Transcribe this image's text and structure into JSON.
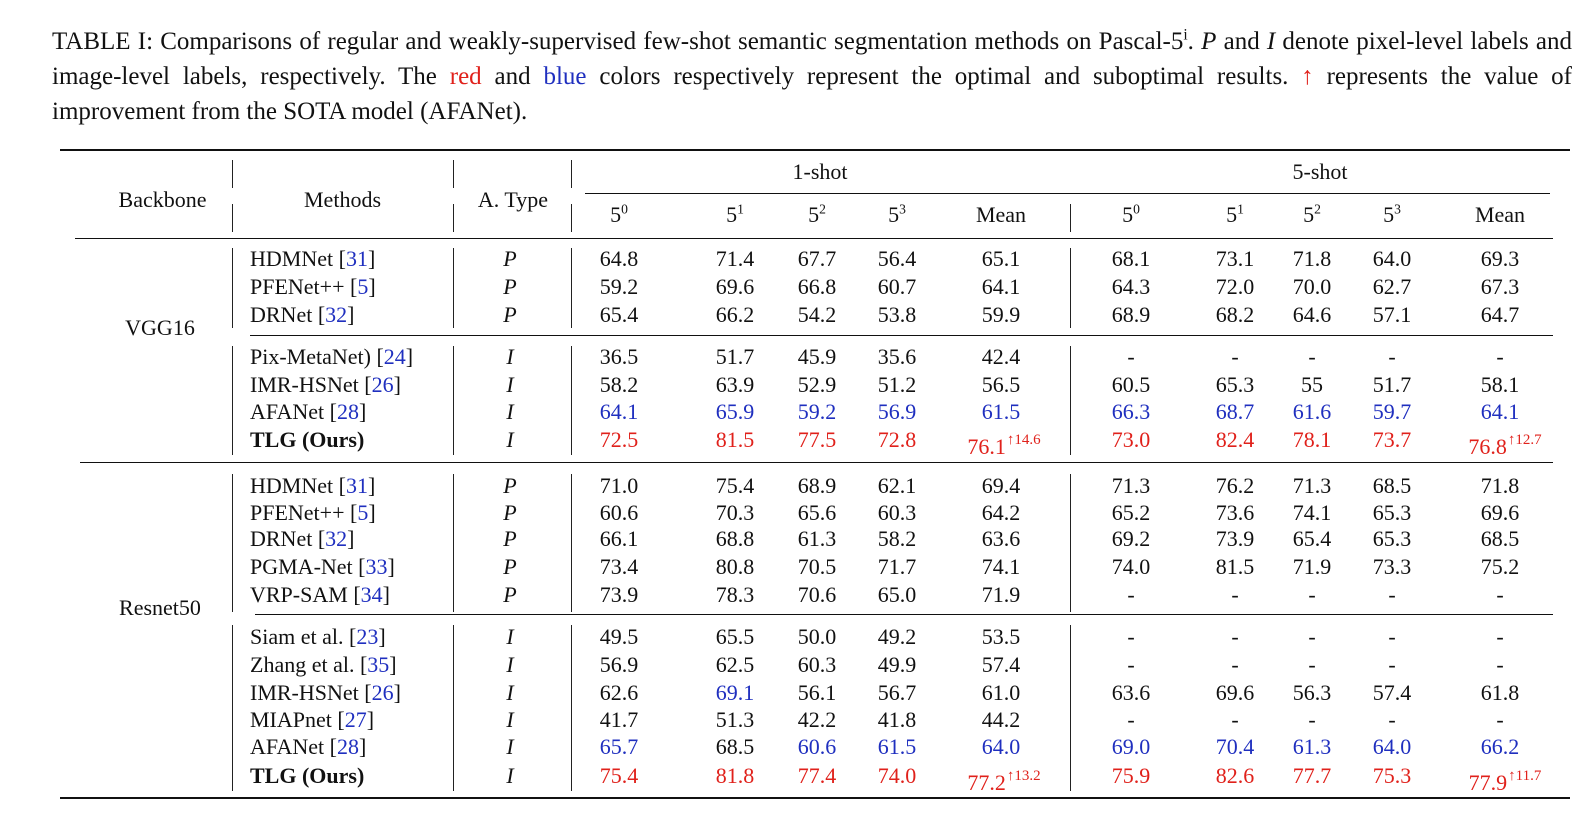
{
  "caption": {
    "part1": "TABLE I: Comparisons of regular and weakly-supervised few-shot semantic segmentation methods on Pascal-5",
    "sup": "i",
    "part2": ". ",
    "p_label": "P",
    "part3": " and ",
    "i_label": "I",
    "part4": " denote pixel-level labels and image-level labels, respectively. The ",
    "red_word": "red",
    "part5": " and ",
    "blue_word": "blue",
    "part6": " colors respectively represent the optimal and suboptimal results. ",
    "arrow": "↑",
    "part7": " represents the value of improvement from the SOTA model (AFANet)."
  },
  "headers": {
    "backbone": "Backbone",
    "methods": "Methods",
    "atype": "A. Type",
    "one_shot": "1-shot",
    "five_shot": "5-shot",
    "folds": [
      "5",
      "5",
      "5",
      "5"
    ],
    "fold_sups": [
      "0",
      "1",
      "2",
      "3"
    ],
    "mean": "Mean"
  },
  "colors": {
    "red": "#e0211b",
    "blue": "#1f2fbf"
  },
  "groups": [
    {
      "backbone": "VGG16",
      "blocks": [
        [
          {
            "method": "HDMNet",
            "ref": "31",
            "type": "P",
            "v1": [
              "64.8",
              "71.4",
              "67.7",
              "56.4",
              "65.1"
            ],
            "v5": [
              "68.1",
              "73.1",
              "71.8",
              "64.0",
              "69.3"
            ]
          },
          {
            "method": "PFENet++",
            "ref": "5",
            "type": "P",
            "v1": [
              "59.2",
              "69.6",
              "66.8",
              "60.7",
              "64.1"
            ],
            "v5": [
              "64.3",
              "72.0",
              "70.0",
              "62.7",
              "67.3"
            ]
          },
          {
            "method": "DRNet",
            "ref": "32",
            "type": "P",
            "v1": [
              "65.4",
              "66.2",
              "54.2",
              "53.8",
              "59.9"
            ],
            "v5": [
              "68.9",
              "68.2",
              "64.6",
              "57.1",
              "64.7"
            ]
          }
        ],
        [
          {
            "method": "Pix-MetaNet)",
            "ref": "24",
            "type": "I",
            "v1": [
              "36.5",
              "51.7",
              "45.9",
              "35.6",
              "42.4"
            ],
            "v5": [
              "-",
              "-",
              "-",
              "-",
              "-"
            ]
          },
          {
            "method": "IMR-HSNet",
            "ref": "26",
            "type": "I",
            "v1": [
              "58.2",
              "63.9",
              "52.9",
              "51.2",
              "56.5"
            ],
            "v5": [
              "60.5",
              "65.3",
              "55",
              "51.7",
              "58.1"
            ]
          },
          {
            "method": "AFANet",
            "ref": "28",
            "type": "I",
            "v1": [
              "64.1",
              "65.9",
              "59.2",
              "56.9",
              "61.5"
            ],
            "v5": [
              "66.3",
              "68.7",
              "61.6",
              "59.7",
              "64.1"
            ],
            "c1": [
              "b",
              "b",
              "b",
              "b",
              "b"
            ],
            "c5": [
              "b",
              "b",
              "b",
              "b",
              "b"
            ]
          },
          {
            "method": "TLG (Ours)",
            "ref": "",
            "type": "I",
            "bold": true,
            "v1": [
              "72.5",
              "81.5",
              "77.5",
              "72.8",
              "76.1"
            ],
            "v5": [
              "73.0",
              "82.4",
              "78.1",
              "73.7",
              "76.8"
            ],
            "c1": [
              "r",
              "r",
              "r",
              "r",
              "r"
            ],
            "c5": [
              "r",
              "r",
              "r",
              "r",
              "r"
            ],
            "imp1": "↑14.6",
            "imp5": "↑12.7"
          }
        ]
      ]
    },
    {
      "backbone": "Resnet50",
      "blocks": [
        [
          {
            "method": "HDMNet",
            "ref": "31",
            "type": "P",
            "v1": [
              "71.0",
              "75.4",
              "68.9",
              "62.1",
              "69.4"
            ],
            "v5": [
              "71.3",
              "76.2",
              "71.3",
              "68.5",
              "71.8"
            ]
          },
          {
            "method": "PFENet++",
            "ref": "5",
            "type": "P",
            "v1": [
              "60.6",
              "70.3",
              "65.6",
              "60.3",
              "64.2"
            ],
            "v5": [
              "65.2",
              "73.6",
              "74.1",
              "65.3",
              "69.6"
            ]
          },
          {
            "method": "DRNet",
            "ref": "32",
            "type": "P",
            "v1": [
              "66.1",
              "68.8",
              "61.3",
              "58.2",
              "63.6"
            ],
            "v5": [
              "69.2",
              "73.9",
              "65.4",
              "65.3",
              "68.5"
            ]
          },
          {
            "method": "PGMA-Net",
            "ref": "33",
            "type": "P",
            "v1": [
              "73.4",
              "80.8",
              "70.5",
              "71.7",
              "74.1"
            ],
            "v5": [
              "74.0",
              "81.5",
              "71.9",
              "73.3",
              "75.2"
            ]
          },
          {
            "method": "VRP-SAM",
            "ref": "34",
            "type": "P",
            "v1": [
              "73.9",
              "78.3",
              "70.6",
              "65.0",
              "71.9"
            ],
            "v5": [
              "-",
              "-",
              "-",
              "-",
              "-"
            ]
          }
        ],
        [
          {
            "method": "Siam et al.",
            "ref": "23",
            "type": "I",
            "v1": [
              "49.5",
              "65.5",
              "50.0",
              "49.2",
              "53.5"
            ],
            "v5": [
              "-",
              "-",
              "-",
              "-",
              "-"
            ]
          },
          {
            "method": "Zhang et al.",
            "ref": "35",
            "type": "I",
            "v1": [
              "56.9",
              "62.5",
              "60.3",
              "49.9",
              "57.4"
            ],
            "v5": [
              "-",
              "-",
              "-",
              "-",
              "-"
            ]
          },
          {
            "method": "IMR-HSNet",
            "ref": "26",
            "type": "I",
            "v1": [
              "62.6",
              "69.1",
              "56.1",
              "56.7",
              "61.0"
            ],
            "v5": [
              "63.6",
              "69.6",
              "56.3",
              "57.4",
              "61.8"
            ],
            "c1": [
              "",
              "b",
              "",
              "",
              ""
            ]
          },
          {
            "method": "MIAPnet",
            "ref": "27",
            "type": "I",
            "v1": [
              "41.7",
              "51.3",
              "42.2",
              "41.8",
              "44.2"
            ],
            "v5": [
              "-",
              "-",
              "-",
              "-",
              "-"
            ]
          },
          {
            "method": "AFANet",
            "ref": "28",
            "type": "I",
            "v1": [
              "65.7",
              "68.5",
              "60.6",
              "61.5",
              "64.0"
            ],
            "v5": [
              "69.0",
              "70.4",
              "61.3",
              "64.0",
              "66.2"
            ],
            "c1": [
              "b",
              "",
              "b",
              "b",
              "b"
            ],
            "c5": [
              "b",
              "b",
              "b",
              "b",
              "b"
            ]
          },
          {
            "method": "TLG (Ours)",
            "ref": "",
            "type": "I",
            "bold": true,
            "v1": [
              "75.4",
              "81.8",
              "77.4",
              "74.0",
              "77.2"
            ],
            "v5": [
              "75.9",
              "82.6",
              "77.7",
              "75.3",
              "77.9"
            ],
            "c1": [
              "r",
              "r",
              "r",
              "r",
              "r"
            ],
            "c5": [
              "r",
              "r",
              "r",
              "r",
              "r"
            ],
            "imp1": "↑13.2",
            "imp5": "↑11.7"
          }
        ]
      ]
    }
  ]
}
